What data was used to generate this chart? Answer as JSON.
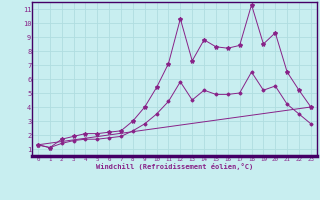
{
  "xlabel": "Windchill (Refroidissement éolien,°C)",
  "bg_color": "#c8eef0",
  "grid_color": "#b0dde0",
  "line_color": "#882288",
  "border_color": "#440066",
  "xlim": [
    -0.5,
    23.5
  ],
  "ylim": [
    0.5,
    11.5
  ],
  "xticks": [
    0,
    1,
    2,
    3,
    4,
    5,
    6,
    7,
    8,
    9,
    10,
    11,
    12,
    13,
    14,
    15,
    16,
    17,
    18,
    19,
    20,
    21,
    22,
    23
  ],
  "yticks": [
    1,
    2,
    3,
    4,
    5,
    6,
    7,
    8,
    9,
    10,
    11
  ],
  "series1_x": [
    0,
    1,
    2,
    3,
    4,
    5,
    6,
    7,
    8,
    9,
    10,
    11,
    12,
    13,
    14,
    15,
    16,
    17,
    18,
    19,
    20,
    21,
    22,
    23
  ],
  "series1_y": [
    1.3,
    1.1,
    1.7,
    1.9,
    2.1,
    2.1,
    2.2,
    2.3,
    3.0,
    4.0,
    5.4,
    7.1,
    10.3,
    7.3,
    8.8,
    8.3,
    8.2,
    8.4,
    11.3,
    8.5,
    9.3,
    6.5,
    5.2,
    4.0
  ],
  "series2_x": [
    0,
    1,
    2,
    3,
    4,
    5,
    6,
    7,
    8,
    9,
    10,
    11,
    12,
    13,
    14,
    15,
    16,
    17,
    18,
    19,
    20,
    21,
    22,
    23
  ],
  "series2_y": [
    1.3,
    1.1,
    1.4,
    1.6,
    1.7,
    1.7,
    1.8,
    1.9,
    2.3,
    2.8,
    3.5,
    4.4,
    5.8,
    4.5,
    5.2,
    4.9,
    4.9,
    5.0,
    6.5,
    5.2,
    5.5,
    4.2,
    3.5,
    2.8
  ],
  "series3_x": [
    0,
    23
  ],
  "series3_y": [
    1.3,
    4.0
  ]
}
